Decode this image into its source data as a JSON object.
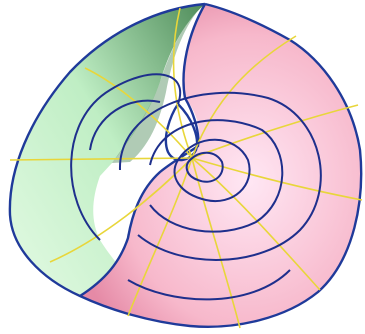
{
  "figure": {
    "subject": "",
    "colors": {
      "background": "#ffffff",
      "green_surface": "#bfeec4",
      "green_surface_light": "#e6fbe6",
      "green_surface_dark": "#4f8c5a",
      "pink_surface": "#f7b8cb",
      "pink_surface_light": "#ffe7f4",
      "pink_surface_dark": "#e58aa6",
      "hole": "#ffffff",
      "edge_curve": "#1f3a9a",
      "level_curve": "#1e2f8c",
      "radial_curve": "#e8d63a"
    }
  }
}
